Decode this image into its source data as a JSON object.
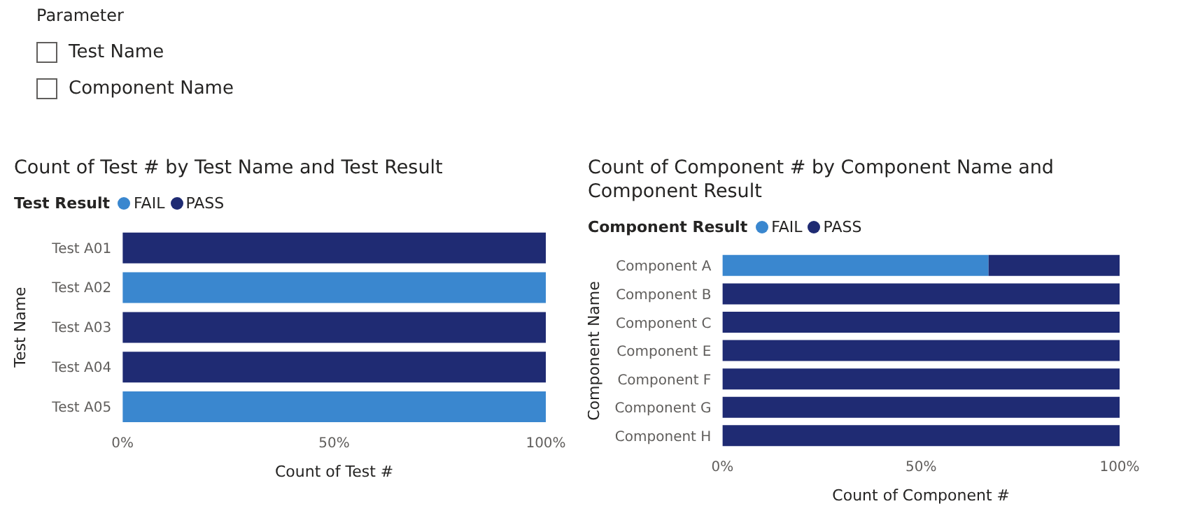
{
  "chart_data": [
    {
      "type": "other",
      "title": "Parameter",
      "annotations": [
        "Test Name",
        "Component Name"
      ]
    },
    {
      "type": "bar",
      "orientation": "horizontal",
      "stacked": true,
      "title": "Count of Test # by Test Name and Test Result",
      "xlabel": "Count of Test #",
      "ylabel": "Test Name",
      "legend_title": "Test Result",
      "legend": "top left",
      "categories": [
        "Test A01",
        "Test A02",
        "Test A03",
        "Test A04",
        "Test A05"
      ],
      "series": [
        {
          "name": "FAIL",
          "color": "#3a87cf",
          "values": [
            0,
            100,
            0,
            0,
            100
          ]
        },
        {
          "name": "PASS",
          "color": "#1f2b73",
          "values": [
            100,
            0,
            100,
            100,
            0
          ]
        }
      ],
      "xlim": [
        0,
        100
      ],
      "xticks": [
        {
          "value": 0,
          "label": "0%"
        },
        {
          "value": 50,
          "label": "50%"
        },
        {
          "value": 100,
          "label": "100%"
        }
      ],
      "grid": false
    },
    {
      "type": "bar",
      "orientation": "horizontal",
      "stacked": true,
      "title": "Count of Component # by Component Name and Component Result",
      "xlabel": "Count of Component #",
      "ylabel": "Component Name",
      "legend_title": "Component Result",
      "legend": "top left",
      "categories": [
        "Component A",
        "Component B",
        "Component C",
        "Component E",
        "Component F",
        "Component G",
        "Component H"
      ],
      "series": [
        {
          "name": "FAIL",
          "color": "#3a87cf",
          "values": [
            67,
            0,
            0,
            0,
            0,
            0,
            0
          ]
        },
        {
          "name": "PASS",
          "color": "#1f2b73",
          "values": [
            33,
            100,
            100,
            100,
            100,
            100,
            100
          ]
        }
      ],
      "xlim": [
        0,
        100
      ],
      "xticks": [
        {
          "value": 0,
          "label": "0%"
        },
        {
          "value": 50,
          "label": "50%"
        },
        {
          "value": 100,
          "label": "100%"
        }
      ],
      "grid": false
    }
  ]
}
